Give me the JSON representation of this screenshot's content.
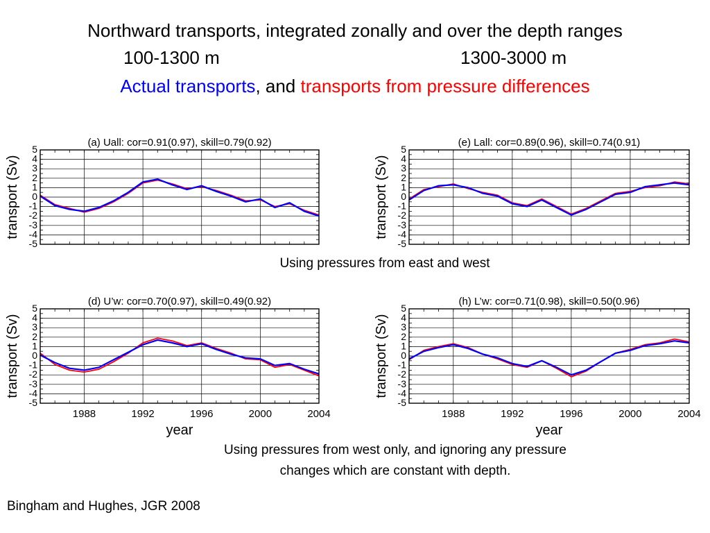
{
  "title": {
    "line1": "Northward transports, integrated zonally and over the depth ranges",
    "range_left": "100-1300 m",
    "range_right": "1300-3000 m",
    "legend_actual": "Actual transports",
    "legend_sep": ", and ",
    "legend_pressure": "transports from pressure differences"
  },
  "captions": {
    "east_west": "Using pressures from east and west",
    "west_only_line1": "Using pressures from west only, and ignoring any pressure",
    "west_only_line2": "changes which are constant with depth."
  },
  "citation": "Bingham and Hughes, JGR 2008",
  "colors": {
    "actual": "#0000ff",
    "pressure": "#ff0000",
    "title_text": "#000000"
  },
  "chart_data": [
    {
      "type": "line",
      "title": "(a) Uall: cor=0.91(0.97), skill=0.79(0.92)",
      "ylabel": "transport (Sv)",
      "xlabel": "",
      "xlim": [
        1985,
        2004
      ],
      "ylim": [
        -5,
        5
      ],
      "yticks": [
        -5,
        -4,
        -3,
        -2,
        -1,
        0,
        1,
        2,
        3,
        4,
        5
      ],
      "xticks": [
        1988,
        1992,
        1996,
        2000,
        2004
      ],
      "xtick_labels_shown": false,
      "grid": true,
      "series": [
        {
          "color": "red",
          "x": [
            1985.0,
            1986.0,
            1987.0,
            1988.0,
            1989.0,
            1990.0,
            1991.0,
            1992.0,
            1993.0,
            1994.0,
            1995.0,
            1996.0,
            1997.0,
            1998.0,
            1999.0,
            2000.0,
            2001.0,
            2002.0,
            2003.0,
            2004.0
          ],
          "values": [
            0.2,
            -0.8,
            -1.2,
            -1.6,
            -1.2,
            -0.5,
            0.4,
            1.5,
            1.8,
            1.4,
            0.9,
            1.1,
            0.7,
            0.2,
            -0.4,
            -0.3,
            -1.0,
            -0.7,
            -1.4,
            -1.9
          ]
        },
        {
          "color": "blue",
          "x": [
            1985.0,
            1986.0,
            1987.0,
            1988.0,
            1989.0,
            1990.0,
            1991.0,
            1992.0,
            1993.0,
            1994.0,
            1995.0,
            1996.0,
            1997.0,
            1998.0,
            1999.0,
            2000.0,
            2001.0,
            2002.0,
            2003.0,
            2004.0
          ],
          "values": [
            0.1,
            -0.9,
            -1.3,
            -1.5,
            -1.1,
            -0.4,
            0.5,
            1.6,
            1.9,
            1.3,
            0.8,
            1.2,
            0.6,
            0.1,
            -0.5,
            -0.2,
            -1.1,
            -0.6,
            -1.5,
            -2.0
          ]
        }
      ]
    },
    {
      "type": "line",
      "title": "(e) Lall: cor=0.89(0.96), skill=0.74(0.91)",
      "ylabel": "transport (Sv)",
      "xlabel": "",
      "xlim": [
        1985,
        2004
      ],
      "ylim": [
        -5,
        5
      ],
      "yticks": [
        -5,
        -4,
        -3,
        -2,
        -1,
        0,
        1,
        2,
        3,
        4,
        5
      ],
      "xticks": [
        1988,
        1992,
        1996,
        2000,
        2004
      ],
      "xtick_labels_shown": false,
      "grid": true,
      "series": [
        {
          "color": "red",
          "x": [
            1985.0,
            1986.0,
            1987.0,
            1988.0,
            1989.0,
            1990.0,
            1991.0,
            1992.0,
            1993.0,
            1994.0,
            1995.0,
            1996.0,
            1997.0,
            1998.0,
            1999.0,
            2000.0,
            2001.0,
            2002.0,
            2003.0,
            2004.0
          ],
          "values": [
            -0.2,
            0.8,
            1.1,
            1.4,
            0.9,
            0.5,
            0.2,
            -0.6,
            -0.9,
            -0.2,
            -1.0,
            -1.8,
            -1.2,
            -0.4,
            0.4,
            0.6,
            1.0,
            1.2,
            1.6,
            1.4
          ]
        },
        {
          "color": "blue",
          "x": [
            1985.0,
            1986.0,
            1987.0,
            1988.0,
            1989.0,
            1990.0,
            1991.0,
            1992.0,
            1993.0,
            1994.0,
            1995.0,
            1996.0,
            1997.0,
            1998.0,
            1999.0,
            2000.0,
            2001.0,
            2002.0,
            2003.0,
            2004.0
          ],
          "values": [
            -0.3,
            0.7,
            1.2,
            1.3,
            1.0,
            0.4,
            0.1,
            -0.7,
            -1.0,
            -0.3,
            -1.1,
            -1.9,
            -1.3,
            -0.5,
            0.3,
            0.5,
            1.1,
            1.3,
            1.5,
            1.3
          ]
        }
      ]
    },
    {
      "type": "line",
      "title": "(d) U’w: cor=0.70(0.97), skill=0.49(0.92)",
      "ylabel": "transport (Sv)",
      "xlabel": "year",
      "xlim": [
        1985,
        2004
      ],
      "ylim": [
        -5,
        5
      ],
      "yticks": [
        -5,
        -4,
        -3,
        -2,
        -1,
        0,
        1,
        2,
        3,
        4,
        5
      ],
      "xticks": [
        1988,
        1992,
        1996,
        2000,
        2004
      ],
      "xtick_labels_shown": true,
      "grid": true,
      "series": [
        {
          "color": "red",
          "x": [
            1985.0,
            1986.0,
            1987.0,
            1988.0,
            1989.0,
            1990.0,
            1991.0,
            1992.0,
            1993.0,
            1994.0,
            1995.0,
            1996.0,
            1997.0,
            1998.0,
            1999.0,
            2000.0,
            2001.0,
            2002.0,
            2003.0,
            2004.0
          ],
          "values": [
            0.3,
            -0.9,
            -1.5,
            -1.7,
            -1.4,
            -0.6,
            0.3,
            1.4,
            1.9,
            1.6,
            1.1,
            1.4,
            0.8,
            0.3,
            -0.3,
            -0.4,
            -1.2,
            -0.9,
            -1.5,
            -2.1
          ]
        },
        {
          "color": "blue",
          "x": [
            1985.0,
            1986.0,
            1987.0,
            1988.0,
            1989.0,
            1990.0,
            1991.0,
            1992.0,
            1993.0,
            1994.0,
            1995.0,
            1996.0,
            1997.0,
            1998.0,
            1999.0,
            2000.0,
            2001.0,
            2002.0,
            2003.0,
            2004.0
          ],
          "values": [
            0.1,
            -0.7,
            -1.3,
            -1.5,
            -1.2,
            -0.4,
            0.4,
            1.2,
            1.7,
            1.4,
            1.0,
            1.3,
            0.7,
            0.2,
            -0.2,
            -0.3,
            -1.0,
            -0.8,
            -1.4,
            -1.9
          ]
        }
      ]
    },
    {
      "type": "line",
      "title": "(h) L’w: cor=0.71(0.98), skill=0.50(0.96)",
      "ylabel": "transport (Sv)",
      "xlabel": "year",
      "xlim": [
        1985,
        2004
      ],
      "ylim": [
        -5,
        5
      ],
      "yticks": [
        -5,
        -4,
        -3,
        -2,
        -1,
        0,
        1,
        2,
        3,
        4,
        5
      ],
      "xticks": [
        1988,
        1992,
        1996,
        2000,
        2004
      ],
      "xtick_labels_shown": true,
      "grid": true,
      "series": [
        {
          "color": "red",
          "x": [
            1985.0,
            1986.0,
            1987.0,
            1988.0,
            1989.0,
            1990.0,
            1991.0,
            1992.0,
            1993.0,
            1994.0,
            1995.0,
            1996.0,
            1997.0,
            1998.0,
            1999.0,
            2000.0,
            2001.0,
            2002.0,
            2003.0,
            2004.0
          ],
          "values": [
            -0.4,
            0.6,
            1.0,
            1.3,
            0.9,
            0.2,
            -0.3,
            -0.9,
            -1.2,
            -0.5,
            -1.3,
            -2.2,
            -1.6,
            -0.6,
            0.3,
            0.7,
            1.2,
            1.4,
            1.8,
            1.5
          ]
        },
        {
          "color": "blue",
          "x": [
            1985.0,
            1986.0,
            1987.0,
            1988.0,
            1989.0,
            1990.0,
            1991.0,
            1992.0,
            1993.0,
            1994.0,
            1995.0,
            1996.0,
            1997.0,
            1998.0,
            1999.0,
            2000.0,
            2001.0,
            2002.0,
            2003.0,
            2004.0
          ],
          "values": [
            -0.3,
            0.5,
            0.9,
            1.2,
            0.8,
            0.2,
            -0.2,
            -0.8,
            -1.1,
            -0.5,
            -1.2,
            -2.0,
            -1.5,
            -0.6,
            0.3,
            0.6,
            1.1,
            1.3,
            1.6,
            1.4
          ]
        }
      ]
    }
  ]
}
